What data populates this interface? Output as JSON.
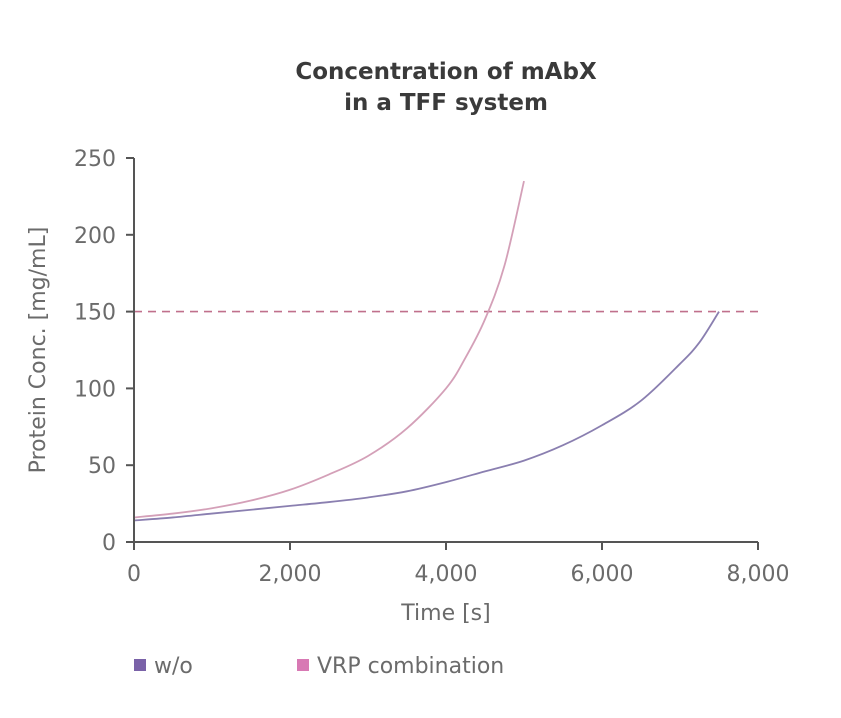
{
  "chart_data": {
    "type": "line",
    "title_lines": [
      "Concentration of mAbX",
      "in a TFF system"
    ],
    "xlabel": "Time [s]",
    "ylabel": "Protein Conc. [mg/mL]",
    "xlim": [
      0,
      8000
    ],
    "ylim": [
      0,
      250
    ],
    "x_ticks": [
      0,
      2000,
      4000,
      6000,
      8000
    ],
    "x_tick_labels": [
      "0",
      "2,000",
      "4,000",
      "6,000",
      "8,000"
    ],
    "y_ticks": [
      0,
      50,
      100,
      150,
      200,
      250
    ],
    "y_tick_labels": [
      "0",
      "50",
      "100",
      "150",
      "200",
      "250"
    ],
    "grid": false,
    "legend_position": "bottom",
    "series": [
      {
        "name": "w/o",
        "color": "#8a7fb0",
        "legend_color": "#7a62a8",
        "points": [
          [
            0,
            14
          ],
          [
            500,
            16
          ],
          [
            1000,
            18.5
          ],
          [
            1500,
            21
          ],
          [
            2000,
            23.5
          ],
          [
            2500,
            26
          ],
          [
            3000,
            29
          ],
          [
            3500,
            33
          ],
          [
            4000,
            39
          ],
          [
            4500,
            46
          ],
          [
            5000,
            53
          ],
          [
            5500,
            63
          ],
          [
            6000,
            76
          ],
          [
            6500,
            92
          ],
          [
            7000,
            116
          ],
          [
            7250,
            130
          ],
          [
            7500,
            150
          ]
        ]
      },
      {
        "name": "VRP combination",
        "color": "#d4a0b8",
        "legend_color": "#d879b4",
        "points": [
          [
            0,
            16
          ],
          [
            500,
            18.5
          ],
          [
            1000,
            22
          ],
          [
            1500,
            27
          ],
          [
            2000,
            34
          ],
          [
            2500,
            44
          ],
          [
            3000,
            56
          ],
          [
            3500,
            74
          ],
          [
            4000,
            100
          ],
          [
            4250,
            120
          ],
          [
            4500,
            145
          ],
          [
            4750,
            180
          ],
          [
            5000,
            235
          ]
        ]
      }
    ],
    "reference_line": {
      "y": 150,
      "color": "#c0708c",
      "style": "dashed"
    }
  }
}
